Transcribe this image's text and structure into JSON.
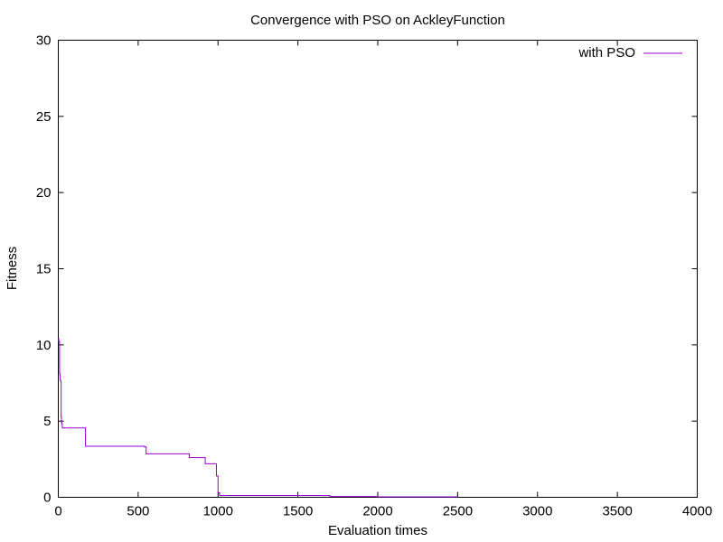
{
  "chart_data": {
    "type": "line",
    "title": "Convergence with PSO on AckleyFunction",
    "xlabel": "Evaluation times",
    "ylabel": "Fitness",
    "xlim": [
      0,
      4000
    ],
    "ylim": [
      0,
      30
    ],
    "xticks": [
      0,
      500,
      1000,
      1500,
      2000,
      2500,
      3000,
      3500,
      4000
    ],
    "yticks": [
      0,
      5,
      10,
      15,
      20,
      25,
      30
    ],
    "xtick_labels": [
      "0",
      "500",
      "1000",
      "1500",
      "2000",
      "2500",
      "3000",
      "3500",
      "4000"
    ],
    "ytick_labels": [
      "0",
      "5",
      "10",
      "15",
      "20",
      "25",
      "30"
    ],
    "grid": false,
    "legend_position": "top-right",
    "step": true,
    "series": [
      {
        "name": "with PSO",
        "color": "#9400d3",
        "x": [
          0,
          3,
          8,
          12,
          15,
          18,
          20,
          23,
          25,
          170,
          540,
          550,
          820,
          920,
          990,
          1000,
          1010,
          1700,
          2000,
          2500
        ],
        "y": [
          10.4,
          10.2,
          8.1,
          7.7,
          7.6,
          5.3,
          4.9,
          4.8,
          4.55,
          3.35,
          3.3,
          2.85,
          2.6,
          2.2,
          1.4,
          0.3,
          0.12,
          0.05,
          0.03,
          0.03
        ]
      }
    ]
  }
}
